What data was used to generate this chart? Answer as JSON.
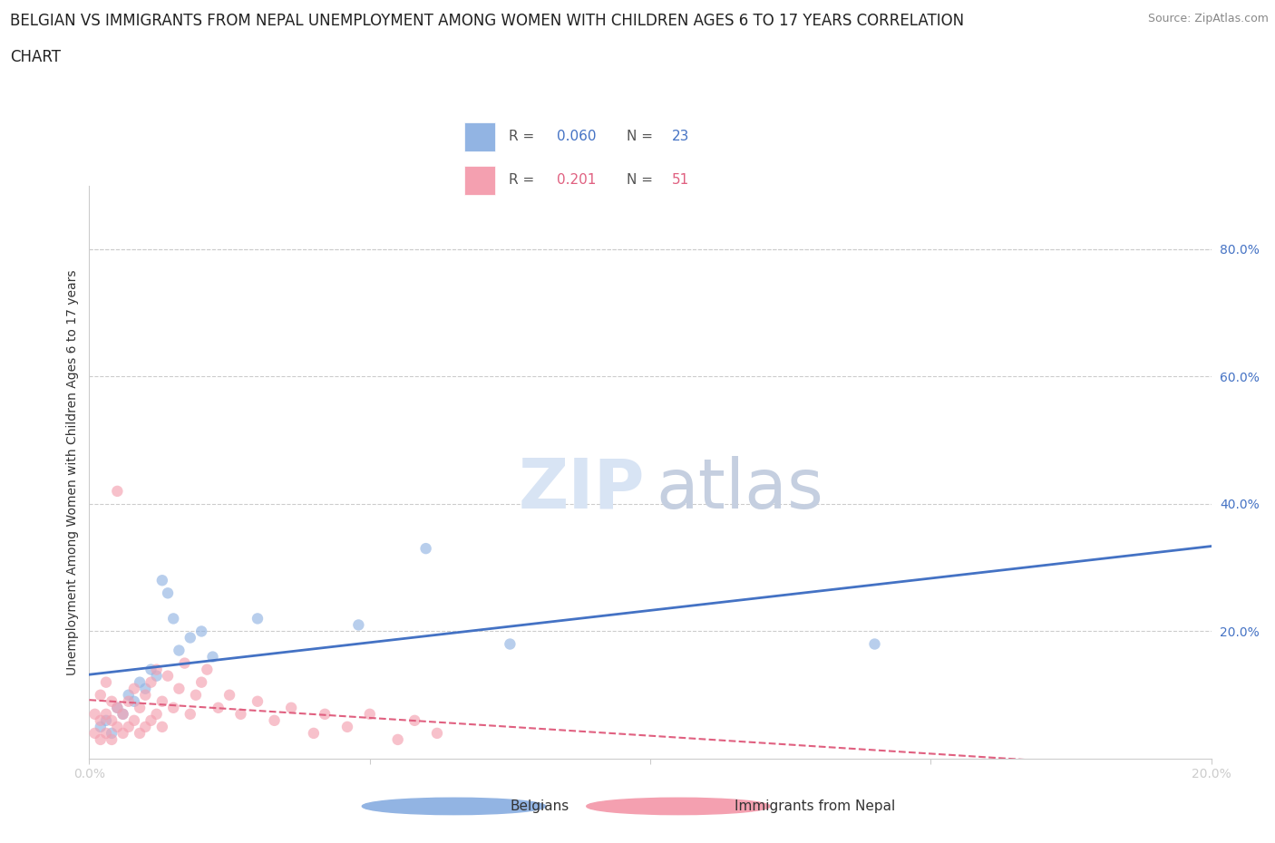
{
  "title_line1": "BELGIAN VS IMMIGRANTS FROM NEPAL UNEMPLOYMENT AMONG WOMEN WITH CHILDREN AGES 6 TO 17 YEARS CORRELATION",
  "title_line2": "CHART",
  "source": "Source: ZipAtlas.com",
  "ylabel": "Unemployment Among Women with Children Ages 6 to 17 years",
  "legend_label_belgian": "Belgians",
  "legend_label_nepal": "Immigrants from Nepal",
  "belgian_color": "#92b4e3",
  "nepal_color": "#f4a0b0",
  "belgian_line_color": "#4472c4",
  "nepal_line_color": "#e06080",
  "axis_label_color": "#4472c4",
  "xlim": [
    0.0,
    0.2
  ],
  "ylim": [
    0.0,
    0.9
  ],
  "yticks": [
    0.0,
    0.2,
    0.4,
    0.6,
    0.8
  ],
  "ytick_labels": [
    "",
    "20.0%",
    "40.0%",
    "60.0%",
    "80.0%"
  ],
  "xticks": [
    0.0,
    0.05,
    0.1,
    0.15,
    0.2
  ],
  "xtick_labels": [
    "0.0%",
    "",
    "",
    "",
    "20.0%"
  ],
  "belgian_x": [
    0.002,
    0.003,
    0.004,
    0.005,
    0.006,
    0.007,
    0.008,
    0.009,
    0.01,
    0.011,
    0.012,
    0.013,
    0.014,
    0.015,
    0.016,
    0.018,
    0.02,
    0.022,
    0.03,
    0.048,
    0.06,
    0.075,
    0.14
  ],
  "belgian_y": [
    0.05,
    0.06,
    0.04,
    0.08,
    0.07,
    0.1,
    0.09,
    0.12,
    0.11,
    0.14,
    0.13,
    0.28,
    0.26,
    0.22,
    0.17,
    0.19,
    0.2,
    0.16,
    0.22,
    0.21,
    0.33,
    0.18,
    0.18
  ],
  "nepal_x": [
    0.001,
    0.001,
    0.002,
    0.002,
    0.002,
    0.003,
    0.003,
    0.003,
    0.004,
    0.004,
    0.004,
    0.005,
    0.005,
    0.005,
    0.006,
    0.006,
    0.007,
    0.007,
    0.008,
    0.008,
    0.009,
    0.009,
    0.01,
    0.01,
    0.011,
    0.011,
    0.012,
    0.012,
    0.013,
    0.013,
    0.014,
    0.015,
    0.016,
    0.017,
    0.018,
    0.019,
    0.02,
    0.021,
    0.023,
    0.025,
    0.027,
    0.03,
    0.033,
    0.036,
    0.04,
    0.042,
    0.046,
    0.05,
    0.055,
    0.058,
    0.062
  ],
  "nepal_y": [
    0.04,
    0.07,
    0.03,
    0.06,
    0.1,
    0.04,
    0.07,
    0.12,
    0.03,
    0.06,
    0.09,
    0.05,
    0.08,
    0.42,
    0.04,
    0.07,
    0.05,
    0.09,
    0.06,
    0.11,
    0.04,
    0.08,
    0.05,
    0.1,
    0.06,
    0.12,
    0.07,
    0.14,
    0.05,
    0.09,
    0.13,
    0.08,
    0.11,
    0.15,
    0.07,
    0.1,
    0.12,
    0.14,
    0.08,
    0.1,
    0.07,
    0.09,
    0.06,
    0.08,
    0.04,
    0.07,
    0.05,
    0.07,
    0.03,
    0.06,
    0.04
  ],
  "background_color": "#ffffff",
  "grid_color": "#cccccc",
  "title_fontsize": 12,
  "axis_fontsize": 10,
  "tick_fontsize": 10,
  "marker_size": 80
}
